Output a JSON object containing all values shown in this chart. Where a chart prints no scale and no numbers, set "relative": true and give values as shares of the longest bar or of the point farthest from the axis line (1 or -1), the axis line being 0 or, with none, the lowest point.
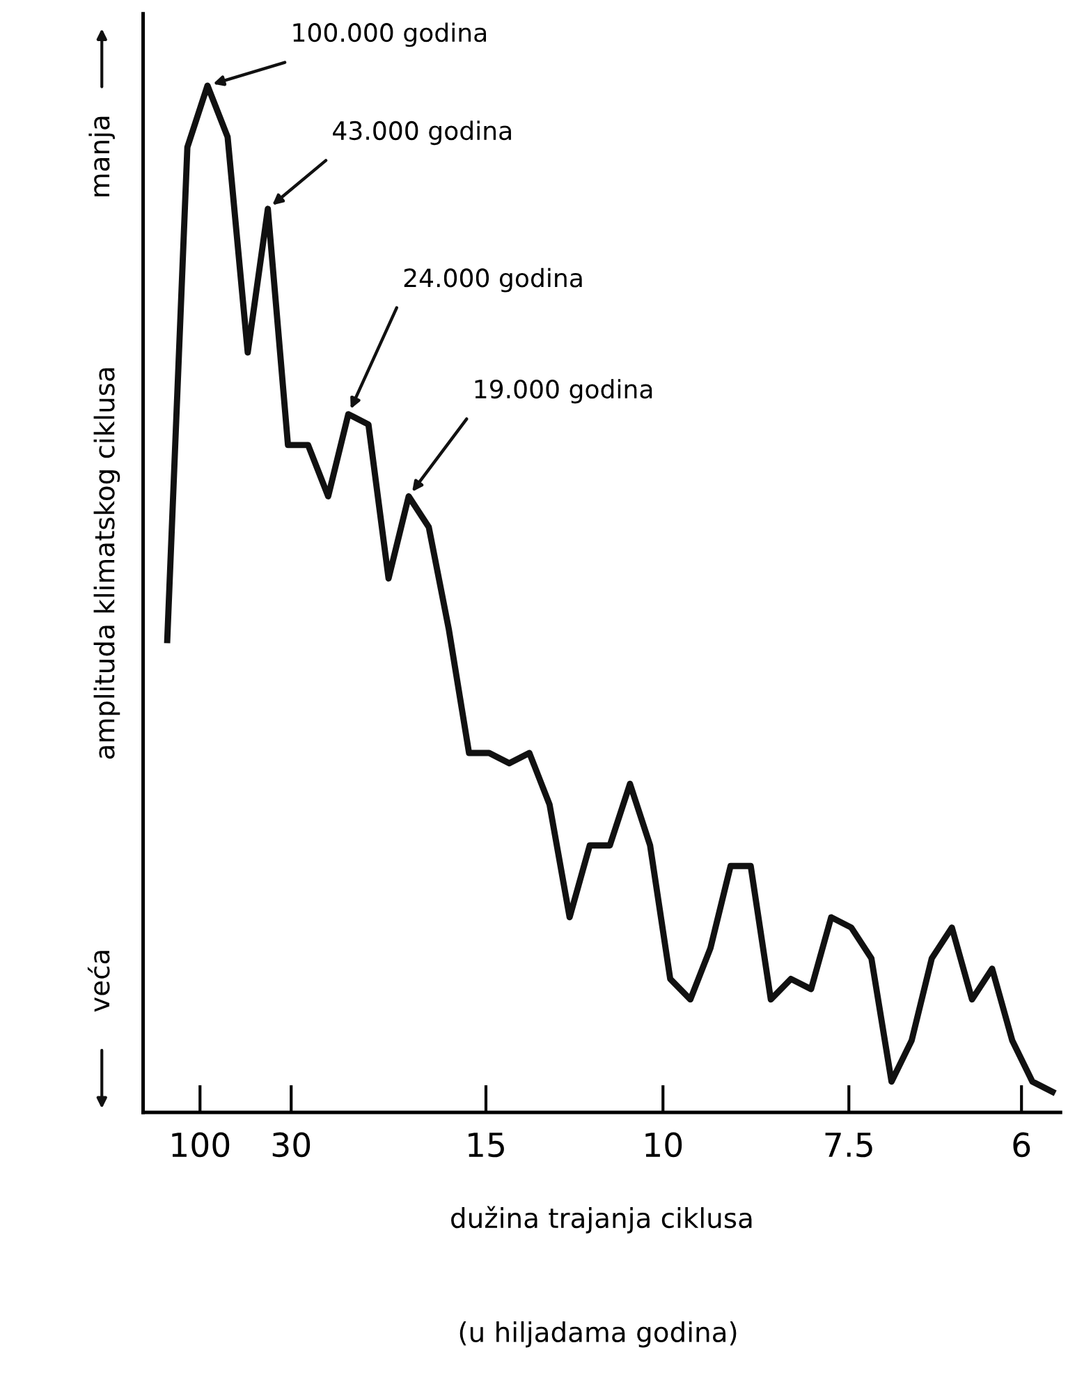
{
  "chart_data": {
    "type": "line",
    "relative": true,
    "color": "#111111",
    "xlabel": "dužina trajanja ciklusa",
    "ylabel": "amplituda klimatskog ciklusa",
    "tick_labels": "x",
    "grid": false,
    "marker": "none",
    "line_style": "solid",
    "categories": [
      null,
      null,
      null,
      null,
      null,
      null,
      null,
      null,
      null,
      null,
      null,
      null,
      null,
      null,
      null,
      null,
      null,
      null,
      null,
      null,
      null,
      null,
      null,
      null,
      null,
      null,
      null,
      null,
      null,
      null,
      null,
      null,
      null,
      null,
      null,
      null,
      null,
      null,
      null,
      null,
      null,
      null,
      null,
      null,
      null
    ],
    "values": [
      0.46,
      0.94,
      1.0,
      0.95,
      0.74,
      0.88,
      0.65,
      0.65,
      0.6,
      0.68,
      0.67,
      0.52,
      0.6,
      0.57,
      0.47,
      0.35,
      0.35,
      0.34,
      0.35,
      0.3,
      0.19,
      0.26,
      0.26,
      0.32,
      0.26,
      0.13,
      0.11,
      0.16,
      0.24,
      0.24,
      0.11,
      0.13,
      0.12,
      0.19,
      0.18,
      0.15,
      0.03,
      0.07,
      0.15,
      0.18,
      0.11,
      0.14,
      0.07,
      0.03,
      0.02
    ],
    "annotations": [
      "100.000 godina",
      "43.000 godina",
      "24.000 godina",
      "19.000 godina",
      "100",
      "30",
      "15",
      "10",
      "7.5",
      "6",
      "manja",
      "veća",
      "(u hiljadama godina)"
    ]
  }
}
